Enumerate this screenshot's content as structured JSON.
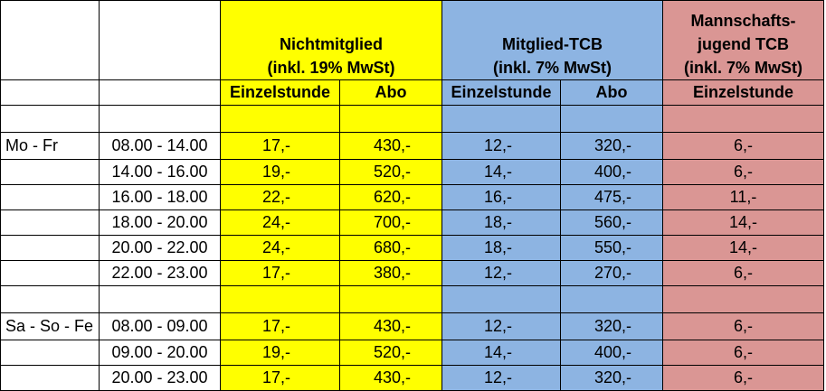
{
  "header": {
    "group1_line1": "Nichtmitglied",
    "group1_line2": "(inkl. 19% MwSt)",
    "group2_line1": "Mitglied-TCB",
    "group2_line2": "(inkl. 7% MwSt)",
    "group3_line1": "Mannschafts-",
    "group3_line2": "jugend TCB",
    "group3_line3": "(inkl. 7% MwSt)"
  },
  "subheader": {
    "col1": "Einzelstunde",
    "col2": "Abo",
    "col3": "Einzelstunde",
    "col4": "Abo",
    "col5": "Einzelstunde"
  },
  "colors": {
    "nichtmitglied": "#ffff00",
    "mitglied": "#8db4e2",
    "jugend": "#da9694"
  },
  "sections": [
    {
      "label": "Mo - Fr",
      "rows": [
        {
          "time": "08.00 - 14.00",
          "n_einzel": "17,-",
          "n_abo": "430,-",
          "m_einzel": "12,-",
          "m_abo": "320,-",
          "j_einzel": "6,-"
        },
        {
          "time": "14.00 - 16.00",
          "n_einzel": "19,-",
          "n_abo": "520,-",
          "m_einzel": "14,-",
          "m_abo": "400,-",
          "j_einzel": "6,-"
        },
        {
          "time": "16.00 - 18.00",
          "n_einzel": "22,-",
          "n_abo": "620,-",
          "m_einzel": "16,-",
          "m_abo": "475,-",
          "j_einzel": "11,-"
        },
        {
          "time": "18.00 - 20.00",
          "n_einzel": "24,-",
          "n_abo": "700,-",
          "m_einzel": "18,-",
          "m_abo": "560,-",
          "j_einzel": "14,-"
        },
        {
          "time": "20.00 - 22.00",
          "n_einzel": "24,-",
          "n_abo": "680,-",
          "m_einzel": "18,-",
          "m_abo": "550,-",
          "j_einzel": "14,-"
        },
        {
          "time": "22.00 - 23.00",
          "n_einzel": "17,-",
          "n_abo": "380,-",
          "m_einzel": "12,-",
          "m_abo": "270,-",
          "j_einzel": "6,-"
        }
      ]
    },
    {
      "label": "Sa - So - Fe",
      "rows": [
        {
          "time": "08.00 - 09.00",
          "n_einzel": "17,-",
          "n_abo": "430,-",
          "m_einzel": "12,-",
          "m_abo": "320,-",
          "j_einzel": "6,-"
        },
        {
          "time": "09.00 - 20.00",
          "n_einzel": "19,-",
          "n_abo": "520,-",
          "m_einzel": "14,-",
          "m_abo": "400,-",
          "j_einzel": "6,-"
        },
        {
          "time": "20.00 - 23.00",
          "n_einzel": "17,-",
          "n_abo": "430,-",
          "m_einzel": "12,-",
          "m_abo": "320,-",
          "j_einzel": "6,-"
        }
      ]
    }
  ]
}
